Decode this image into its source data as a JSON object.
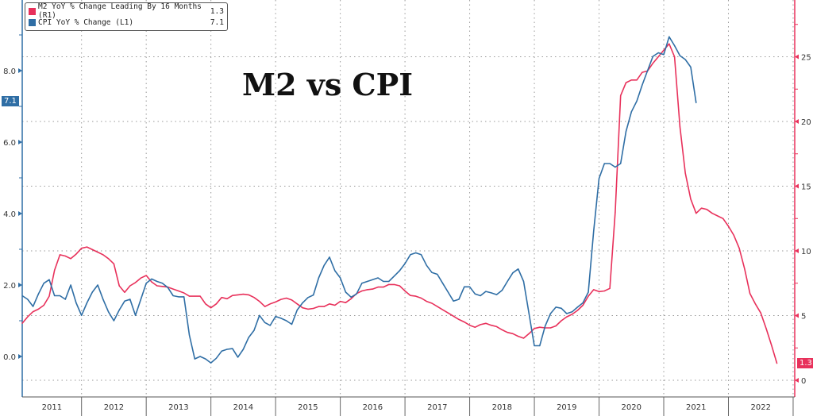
{
  "chart_data": {
    "type": "line",
    "title": "M2 vs CPI",
    "start_month": "2011-02",
    "frequency": "monthly",
    "x_tick_labels": [
      "2011",
      "2012",
      "2013",
      "2014",
      "2015",
      "2016",
      "2017",
      "2018",
      "2019",
      "2020",
      "2021",
      "2022"
    ],
    "left_axis": {
      "ticks": [
        "8.0",
        "6.0",
        "4.0",
        "2.0",
        "0.0"
      ],
      "tick_values": [
        8,
        6,
        4,
        2,
        0
      ],
      "range": [
        -1.1,
        10.0
      ]
    },
    "right_axis": {
      "ticks": [
        "25",
        "20",
        "15",
        "10",
        "5",
        "0"
      ],
      "tick_values": [
        25,
        20,
        15,
        10,
        5,
        0
      ],
      "range": [
        -1.3,
        29.4
      ]
    },
    "grid": true,
    "legend_position": "top-left",
    "series": [
      {
        "name": "M2 YoY % Change Leading By 16 Months (R1)",
        "last_value": "1.3",
        "axis": "right",
        "color": "#e8315b",
        "values": [
          4.4,
          4.9,
          5.3,
          5.5,
          5.8,
          6.5,
          8.5,
          9.7,
          9.6,
          9.4,
          9.75,
          10.2,
          10.3,
          10.1,
          9.9,
          9.7,
          9.4,
          9.0,
          7.3,
          6.8,
          7.3,
          7.55,
          7.9,
          8.1,
          7.6,
          7.3,
          7.25,
          7.2,
          7.05,
          6.9,
          6.75,
          6.5,
          6.5,
          6.5,
          5.9,
          5.6,
          5.9,
          6.4,
          6.3,
          6.55,
          6.6,
          6.65,
          6.6,
          6.4,
          6.1,
          5.7,
          5.9,
          6.05,
          6.25,
          6.35,
          6.2,
          5.9,
          5.6,
          5.5,
          5.55,
          5.7,
          5.7,
          5.9,
          5.8,
          6.1,
          6.0,
          6.3,
          6.7,
          6.9,
          7.0,
          7.05,
          7.2,
          7.2,
          7.4,
          7.4,
          7.3,
          6.9,
          6.55,
          6.5,
          6.35,
          6.1,
          5.95,
          5.7,
          5.45,
          5.2,
          4.95,
          4.7,
          4.5,
          4.25,
          4.1,
          4.3,
          4.4,
          4.25,
          4.15,
          3.9,
          3.7,
          3.6,
          3.4,
          3.25,
          3.6,
          4.0,
          4.1,
          4.05,
          4.05,
          4.2,
          4.6,
          4.9,
          5.1,
          5.4,
          5.8,
          6.5,
          7.0,
          6.85,
          6.9,
          7.1,
          13.0,
          22.0,
          23.0,
          23.2,
          23.2,
          23.8,
          23.9,
          24.5,
          25.0,
          25.5,
          26.0,
          25.0,
          19.6,
          16.0,
          14.0,
          12.9,
          13.3,
          13.2,
          12.9,
          12.7,
          12.5,
          11.9,
          11.2,
          10.2,
          8.6,
          6.7,
          5.9,
          5.2,
          4.0,
          2.7,
          1.3
        ]
      },
      {
        "name": "CPI YoY % Change (L1)",
        "last_value": "7.1",
        "axis": "left",
        "color": "#2f6ea5",
        "values": [
          1.7,
          1.6,
          1.4,
          1.75,
          2.05,
          2.15,
          1.7,
          1.7,
          1.6,
          2.0,
          1.5,
          1.15,
          1.5,
          1.8,
          2.0,
          1.6,
          1.25,
          1.0,
          1.3,
          1.55,
          1.6,
          1.15,
          1.6,
          2.05,
          2.17,
          2.1,
          2.05,
          1.93,
          1.7,
          1.67,
          1.67,
          0.6,
          -0.07,
          0.0,
          -0.07,
          -0.18,
          -0.05,
          0.15,
          0.2,
          0.22,
          -0.02,
          0.2,
          0.53,
          0.73,
          1.15,
          0.95,
          0.87,
          1.12,
          1.07,
          1.0,
          0.9,
          1.3,
          1.5,
          1.65,
          1.72,
          2.2,
          2.55,
          2.78,
          2.4,
          2.2,
          1.8,
          1.66,
          1.75,
          2.05,
          2.1,
          2.15,
          2.2,
          2.1,
          2.1,
          2.25,
          2.4,
          2.6,
          2.85,
          2.9,
          2.85,
          2.55,
          2.35,
          2.3,
          2.05,
          1.8,
          1.55,
          1.6,
          1.95,
          1.95,
          1.75,
          1.7,
          1.82,
          1.78,
          1.73,
          1.85,
          2.1,
          2.34,
          2.45,
          2.1,
          1.2,
          0.3,
          0.3,
          0.85,
          1.2,
          1.38,
          1.35,
          1.2,
          1.25,
          1.38,
          1.5,
          1.8,
          3.5,
          4.98,
          5.4,
          5.4,
          5.3,
          5.4,
          6.3,
          6.85,
          7.15,
          7.6,
          8.0,
          8.4,
          8.5,
          8.45,
          8.95,
          8.7,
          8.42,
          8.31,
          8.1,
          7.1
        ]
      }
    ]
  }
}
